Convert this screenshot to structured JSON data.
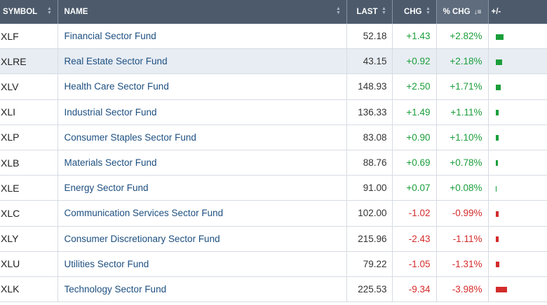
{
  "headers": {
    "symbol": "SYMBOL",
    "name": "NAME",
    "last": "LAST",
    "chg": "CHG",
    "pct_chg": "% CHG",
    "plus_minus": "+/-"
  },
  "colors": {
    "up": "#1a9e3a",
    "down": "#d32b2b",
    "header_bg": "#4c5a6b",
    "name_link": "#1d4f80"
  },
  "sort": {
    "column": "pct_chg",
    "direction": "descending"
  },
  "rows": [
    {
      "symbol": "XLF",
      "name": "Financial Sector Fund",
      "last": "52.18",
      "chg": "+1.43",
      "pct_chg": "+2.82%",
      "pct": 2.82,
      "highlighted": false
    },
    {
      "symbol": "XLRE",
      "name": "Real Estate Sector Fund",
      "last": "43.15",
      "chg": "+0.92",
      "pct_chg": "+2.18%",
      "pct": 2.18,
      "highlighted": true
    },
    {
      "symbol": "XLV",
      "name": "Health Care Sector Fund",
      "last": "148.93",
      "chg": "+2.50",
      "pct_chg": "+1.71%",
      "pct": 1.71,
      "highlighted": false
    },
    {
      "symbol": "XLI",
      "name": "Industrial Sector Fund",
      "last": "136.33",
      "chg": "+1.49",
      "pct_chg": "+1.11%",
      "pct": 1.11,
      "highlighted": false
    },
    {
      "symbol": "XLP",
      "name": "Consumer Staples Sector Fund",
      "last": "83.08",
      "chg": "+0.90",
      "pct_chg": "+1.10%",
      "pct": 1.1,
      "highlighted": false
    },
    {
      "symbol": "XLB",
      "name": "Materials Sector Fund",
      "last": "88.76",
      "chg": "+0.69",
      "pct_chg": "+0.78%",
      "pct": 0.78,
      "highlighted": false
    },
    {
      "symbol": "XLE",
      "name": "Energy Sector Fund",
      "last": "91.00",
      "chg": "+0.07",
      "pct_chg": "+0.08%",
      "pct": 0.08,
      "highlighted": false
    },
    {
      "symbol": "XLC",
      "name": "Communication Services Sector Fund",
      "last": "102.00",
      "chg": "-1.02",
      "pct_chg": "-0.99%",
      "pct": -0.99,
      "highlighted": false
    },
    {
      "symbol": "XLY",
      "name": "Consumer Discretionary Sector Fund",
      "last": "215.96",
      "chg": "-2.43",
      "pct_chg": "-1.11%",
      "pct": -1.11,
      "highlighted": false
    },
    {
      "symbol": "XLU",
      "name": "Utilities Sector Fund",
      "last": "79.22",
      "chg": "-1.05",
      "pct_chg": "-1.31%",
      "pct": -1.31,
      "highlighted": false
    },
    {
      "symbol": "XLK",
      "name": "Technology Sector Fund",
      "last": "225.53",
      "chg": "-9.34",
      "pct_chg": "-3.98%",
      "pct": -3.98,
      "highlighted": false
    }
  ]
}
